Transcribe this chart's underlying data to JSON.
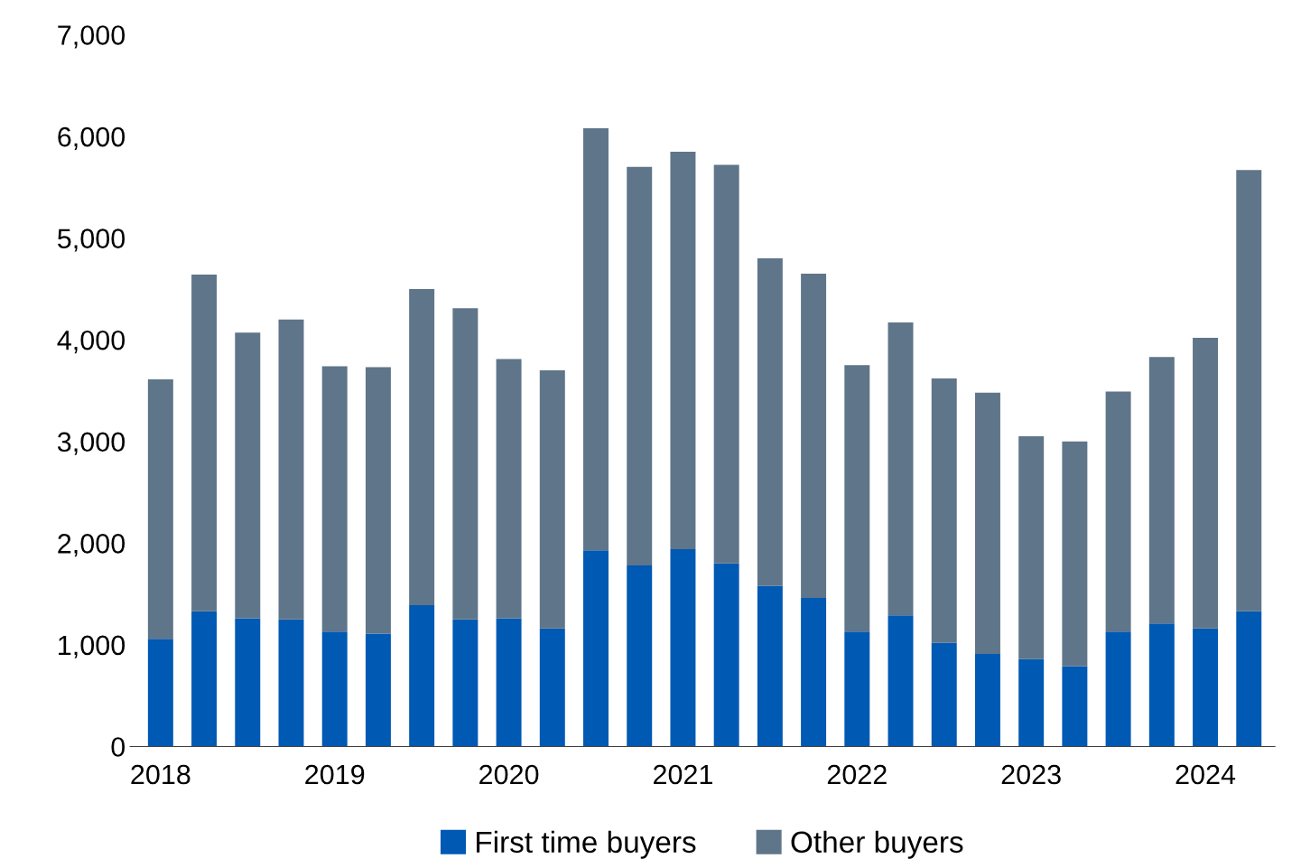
{
  "chart_data": {
    "type": "bar",
    "stacked": true,
    "categories": [
      "2018",
      null,
      null,
      null,
      "2019",
      null,
      null,
      null,
      "2020",
      null,
      null,
      null,
      "2021",
      null,
      null,
      null,
      "2022",
      null,
      null,
      null,
      "2023",
      null,
      null,
      null,
      "2024",
      null
    ],
    "series": [
      {
        "name": "First time buyers",
        "color": "#0059b3",
        "values": [
          1060,
          1330,
          1260,
          1250,
          1130,
          1110,
          1390,
          1250,
          1260,
          1160,
          1930,
          1780,
          1940,
          1800,
          1580,
          1460,
          1130,
          1290,
          1020,
          910,
          860,
          790,
          1130,
          1210,
          1160,
          1330
        ]
      },
      {
        "name": "Other buyers",
        "color": "#5f7589",
        "values": [
          2550,
          3310,
          2810,
          2950,
          2610,
          2620,
          3110,
          3060,
          2550,
          2540,
          4150,
          3920,
          3910,
          3920,
          3220,
          3190,
          2620,
          2880,
          2600,
          2570,
          2190,
          2210,
          2360,
          2620,
          2860,
          4340
        ]
      }
    ],
    "ylim": [
      0,
      7000
    ],
    "yticks": [
      0,
      {
        "value": 1000,
        "label": "1,000"
      },
      {
        "value": 2000,
        "label": "2,000"
      },
      {
        "value": 3000,
        "label": "3,000"
      },
      {
        "value": 4000,
        "label": "4,000"
      },
      {
        "value": 5000,
        "label": "5,000"
      },
      {
        "value": 6000,
        "label": "6,000"
      },
      {
        "value": 7000,
        "label": "7,000"
      }
    ],
    "grid": false,
    "legend": "bottom"
  }
}
